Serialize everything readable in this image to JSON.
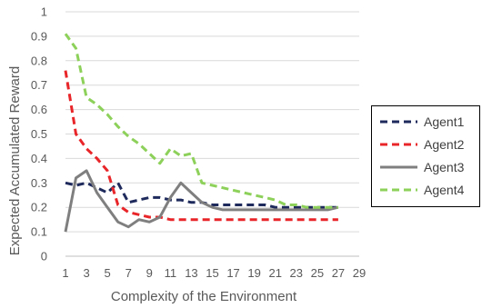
{
  "chart_data": {
    "type": "line",
    "title": "",
    "xlabel": "Complexity of the Environment",
    "ylabel": "Expected Accumulated Reward",
    "x": [
      1,
      2,
      3,
      4,
      5,
      6,
      7,
      8,
      9,
      10,
      11,
      12,
      13,
      14,
      15,
      16,
      17,
      18,
      19,
      20,
      21,
      22,
      23,
      24,
      25,
      26,
      27
    ],
    "xticks": [
      "1",
      "3",
      "5",
      "7",
      "9",
      "11",
      "13",
      "15",
      "17",
      "19",
      "21",
      "23",
      "25",
      "27",
      "29"
    ],
    "xlim": [
      1,
      29
    ],
    "ylim": [
      0,
      1
    ],
    "yticks": [
      "0",
      "0.1",
      "0.2",
      "0.3",
      "0.4",
      "0.5",
      "0.6",
      "0.7",
      "0.8",
      "0.9",
      "1"
    ],
    "grid": true,
    "legend_position": "right",
    "series": [
      {
        "name": "Agent1",
        "color": "#1f2a5c",
        "dash": "dashed",
        "values": [
          0.3,
          0.29,
          0.3,
          0.28,
          0.26,
          0.3,
          0.22,
          0.23,
          0.24,
          0.24,
          0.23,
          0.23,
          0.22,
          0.22,
          0.21,
          0.21,
          0.21,
          0.21,
          0.21,
          0.21,
          0.2,
          0.2,
          0.2,
          0.2,
          0.2,
          0.2,
          0.2
        ]
      },
      {
        "name": "Agent2",
        "color": "#e8262a",
        "dash": "dashed",
        "values": [
          0.76,
          0.5,
          0.44,
          0.4,
          0.35,
          0.21,
          0.18,
          0.17,
          0.16,
          0.16,
          0.15,
          0.15,
          0.15,
          0.15,
          0.15,
          0.15,
          0.15,
          0.15,
          0.15,
          0.15,
          0.15,
          0.15,
          0.15,
          0.15,
          0.15,
          0.15,
          0.15
        ]
      },
      {
        "name": "Agent3",
        "color": "#7f7f7f",
        "dash": "solid",
        "values": [
          0.1,
          0.32,
          0.35,
          0.26,
          0.2,
          0.14,
          0.12,
          0.15,
          0.14,
          0.16,
          0.24,
          0.3,
          0.26,
          0.22,
          0.2,
          0.19,
          0.19,
          0.19,
          0.19,
          0.19,
          0.19,
          0.19,
          0.19,
          0.19,
          0.19,
          0.19,
          0.2
        ]
      },
      {
        "name": "Agent4",
        "color": "#8dd05a",
        "dash": "dashed",
        "values": [
          0.91,
          0.85,
          0.65,
          0.62,
          0.58,
          0.53,
          0.49,
          0.46,
          0.42,
          0.38,
          0.44,
          0.41,
          0.42,
          0.3,
          0.29,
          0.28,
          0.27,
          0.26,
          0.25,
          0.24,
          0.23,
          0.21,
          0.21,
          0.2,
          0.2,
          0.2,
          0.2
        ]
      }
    ]
  }
}
